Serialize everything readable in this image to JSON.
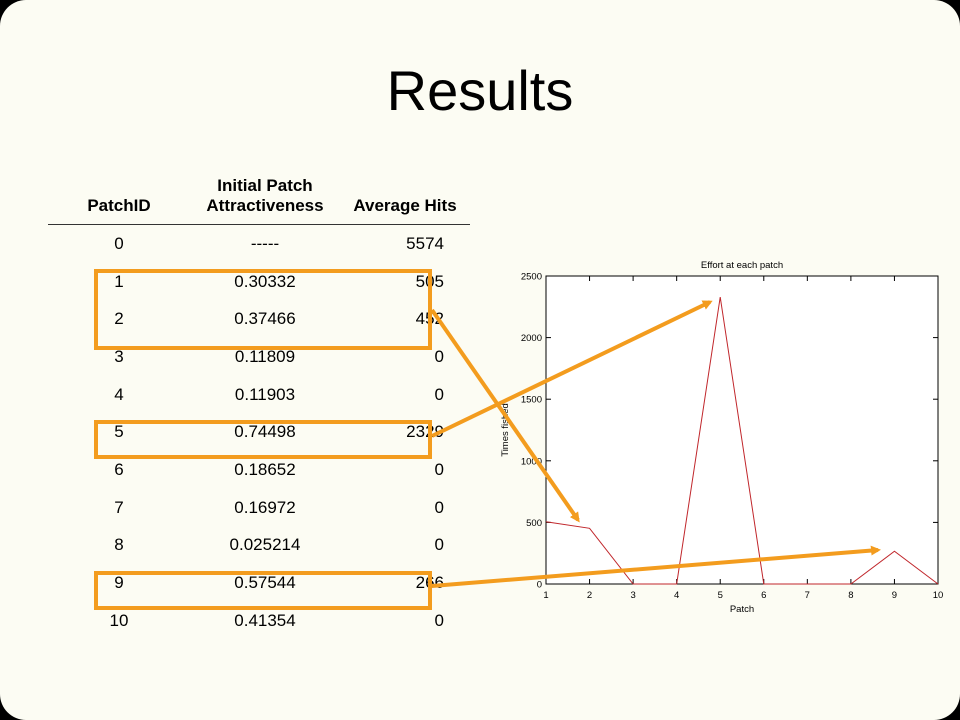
{
  "slide": {
    "title": "Results"
  },
  "table": {
    "headers": [
      "PatchID",
      "Initial Patch Attractiveness",
      "Average Hits"
    ],
    "rows": [
      [
        "0",
        "-----",
        "5574"
      ],
      [
        "1",
        "0.30332",
        "505"
      ],
      [
        "2",
        "0.37466",
        "452"
      ],
      [
        "3",
        "0.11809",
        "0"
      ],
      [
        "4",
        "0.11903",
        "0"
      ],
      [
        "5",
        "0.74498",
        "2329"
      ],
      [
        "6",
        "0.18652",
        "0"
      ],
      [
        "7",
        "0.16972",
        "0"
      ],
      [
        "8",
        "0.025214",
        "0"
      ],
      [
        "9",
        "0.57544",
        "266"
      ],
      [
        "10",
        "0.41354",
        "0"
      ]
    ]
  },
  "chart_data": {
    "type": "line",
    "title": "Effort at each patch",
    "xlabel": "Patch",
    "ylabel": "Times fished",
    "x": [
      1,
      2,
      3,
      4,
      5,
      6,
      7,
      8,
      9,
      10
    ],
    "series": [
      {
        "values": [
          505,
          452,
          0,
          0,
          2329,
          0,
          0,
          0,
          266,
          0
        ]
      }
    ],
    "xlim": [
      1,
      10
    ],
    "ylim": [
      0,
      2500
    ],
    "xticks": [
      1,
      2,
      3,
      4,
      5,
      6,
      7,
      8,
      9,
      10
    ],
    "yticks": [
      0,
      500,
      1000,
      1500,
      2000,
      2500
    ],
    "grid": false,
    "line_color": "#c0262b"
  },
  "colors": {
    "highlight": "#f39c1e",
    "background": "#fcfcf3"
  }
}
